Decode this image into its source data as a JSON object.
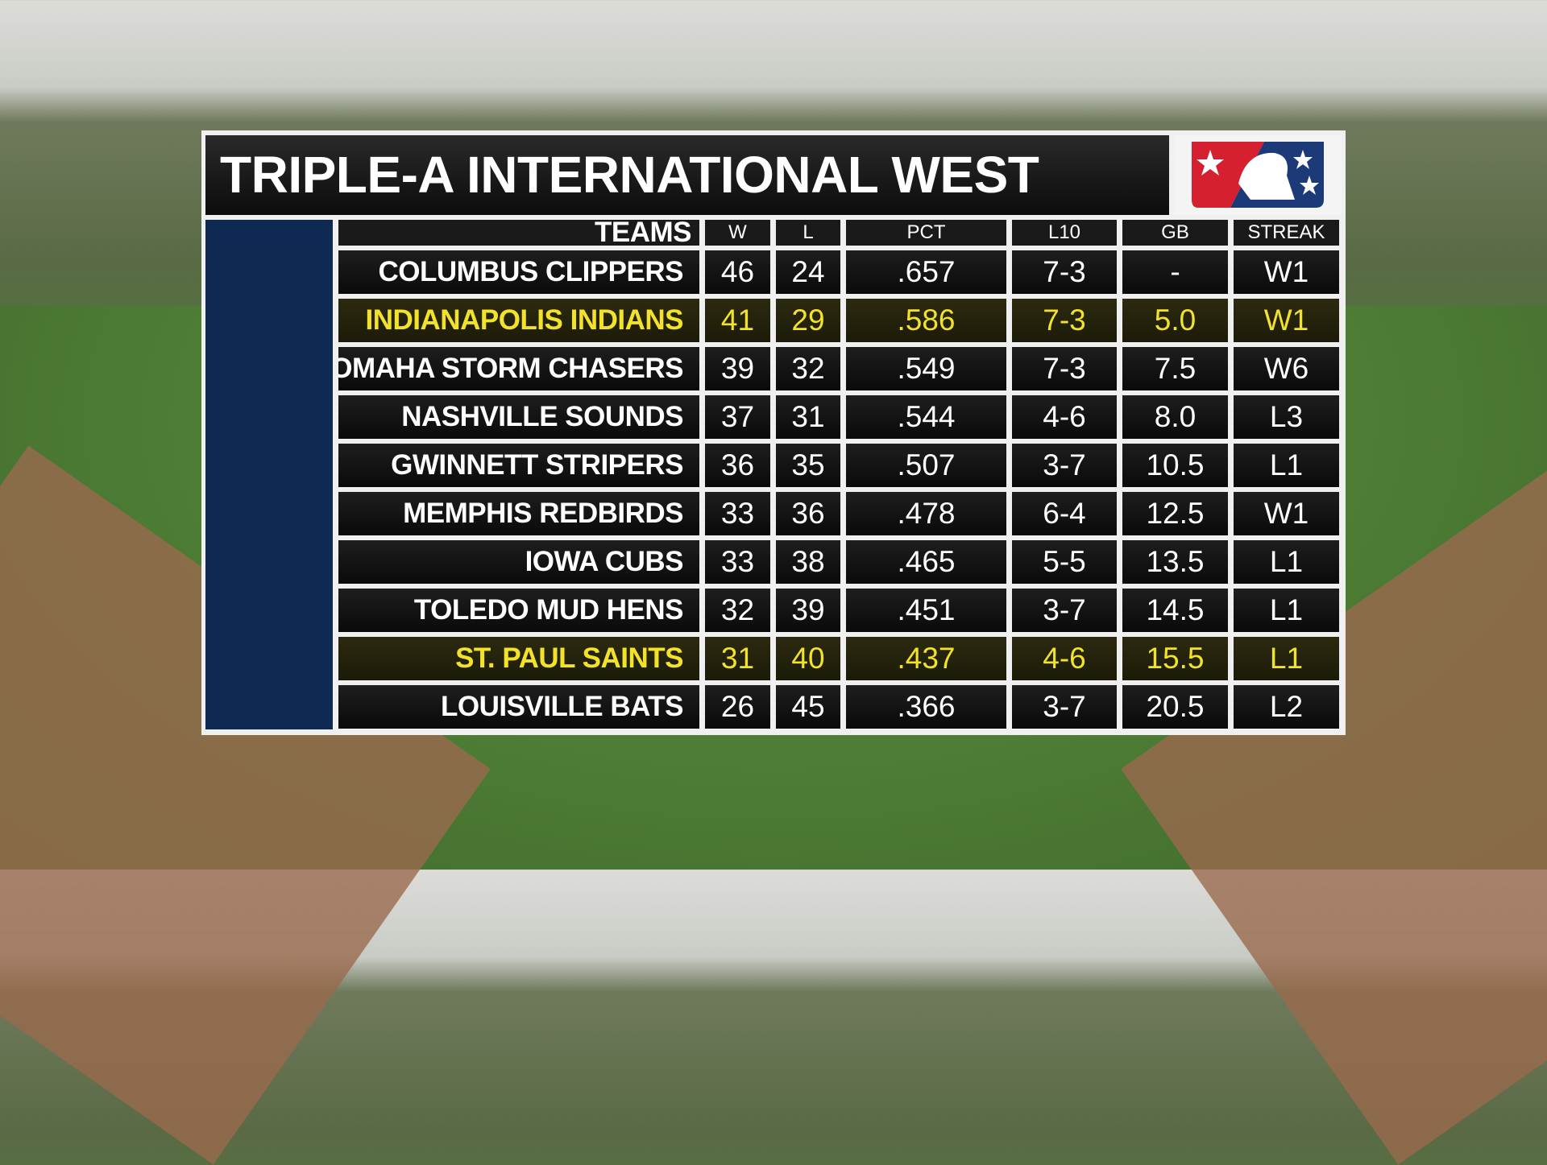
{
  "title": "TRIPLE-A INTERNATIONAL WEST",
  "table": {
    "columns": [
      "TEAMS",
      "W",
      "L",
      "PCT",
      "L10",
      "GB",
      "STREAK"
    ],
    "rows": [
      [
        "COLUMBUS CLIPPERS",
        "46",
        "24",
        ".657",
        "7-3",
        "-",
        "W1"
      ],
      [
        "INDIANAPOLIS INDIANS",
        "41",
        "29",
        ".586",
        "7-3",
        "5.0",
        "W1"
      ],
      [
        "OMAHA STORM CHASERS",
        "39",
        "32",
        ".549",
        "7-3",
        "7.5",
        "W6"
      ],
      [
        "NASHVILLE SOUNDS",
        "37",
        "31",
        ".544",
        "4-6",
        "8.0",
        "L3"
      ],
      [
        "GWINNETT STRIPERS",
        "36",
        "35",
        ".507",
        "3-7",
        "10.5",
        "L1"
      ],
      [
        "MEMPHIS REDBIRDS",
        "33",
        "36",
        ".478",
        "6-4",
        "12.5",
        "W1"
      ],
      [
        "IOWA CUBS",
        "33",
        "38",
        ".465",
        "5-5",
        "13.5",
        "L1"
      ],
      [
        "TOLEDO MUD HENS",
        "32",
        "39",
        ".451",
        "3-7",
        "14.5",
        "L1"
      ],
      [
        "ST. PAUL SAINTS",
        "31",
        "40",
        ".437",
        "4-6",
        "15.5",
        "L1"
      ],
      [
        "LOUISVILLE BATS",
        "26",
        "45",
        ".366",
        "3-7",
        "20.5",
        "L2"
      ]
    ]
  }
}
